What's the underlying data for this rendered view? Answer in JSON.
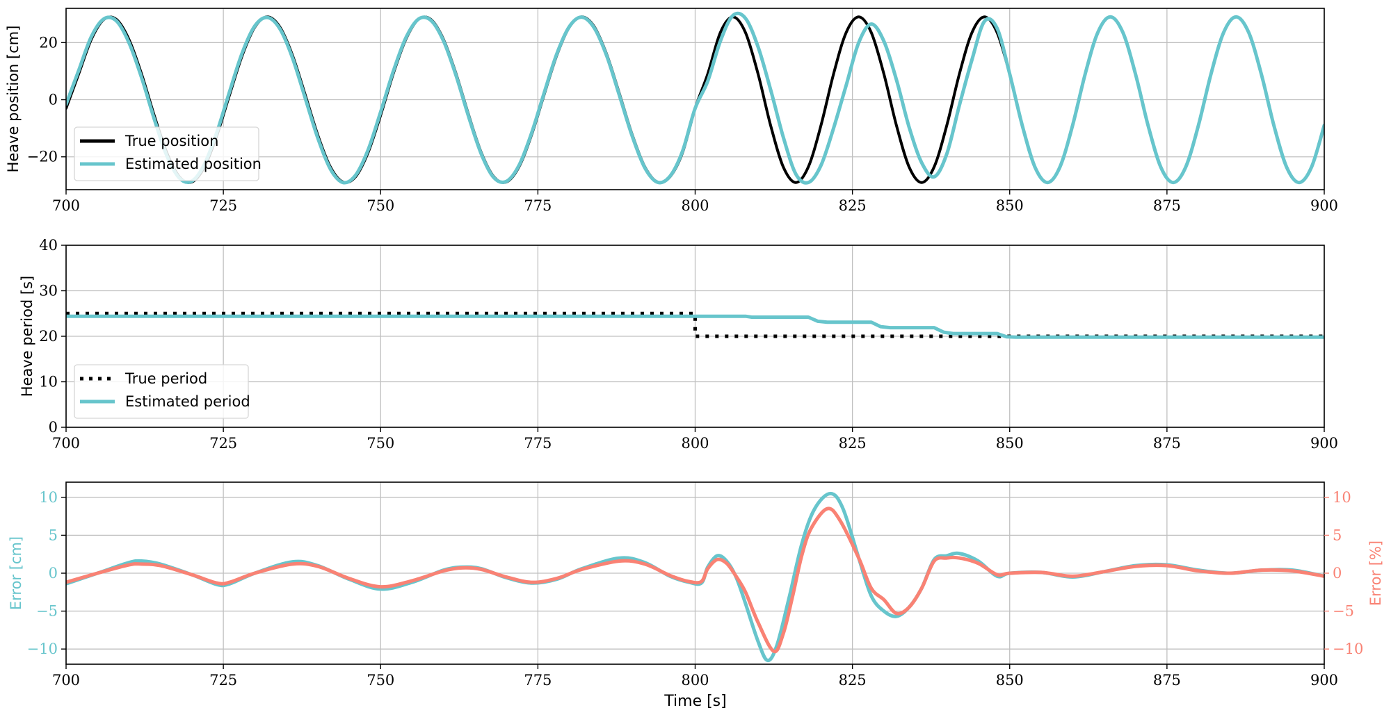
{
  "figure": {
    "xlabel": "Time [s]",
    "colors": {
      "true": "#000000",
      "estimated": "#67c5cc",
      "error_cm": "#67c5cc",
      "error_pct": "#f98274",
      "grid": "#c0c0c0",
      "axis": "#000000"
    }
  },
  "chart_data": [
    {
      "type": "line",
      "title": "",
      "xlabel": "",
      "ylabel": "Heave position [cm]",
      "xlim": [
        700,
        900
      ],
      "ylim": [
        -31.5,
        32
      ],
      "xticks": [
        700,
        725,
        750,
        775,
        800,
        825,
        850,
        875,
        900
      ],
      "yticks": [
        -20,
        0,
        20
      ],
      "grid": true,
      "legend": {
        "position": "lower left",
        "entries": [
          "True position",
          "Estimated position"
        ]
      },
      "x_step": 2,
      "x_start": 700,
      "series": [
        {
          "name": "True position",
          "style": "solid",
          "color": "#000000",
          "values": [
            -3.0,
            9.0,
            21.1,
            28.1,
            28.1,
            21.1,
            9.0,
            -5.4,
            -18.5,
            -27.0,
            -28.8,
            -23.5,
            -12.3,
            1.8,
            15.5,
            25.4,
            29.0,
            25.4,
            15.5,
            1.8,
            -12.3,
            -23.5,
            -28.8,
            -27.0,
            -18.5,
            -5.4,
            9.0,
            21.1,
            28.1,
            28.1,
            21.1,
            9.0,
            -5.4,
            -18.5,
            -27.0,
            -28.8,
            -23.5,
            -12.3,
            1.8,
            15.5,
            25.4,
            29.0,
            25.4,
            15.5,
            1.8,
            -12.3,
            -23.5,
            -28.8,
            -27.0,
            -18.5,
            -3.0,
            9.0,
            23.5,
            29.0,
            23.5,
            9.0,
            -9.0,
            -23.5,
            -29.0,
            -23.5,
            -9.0,
            9.0,
            23.5,
            29.0,
            23.5,
            9.0,
            -9.0,
            -23.5,
            -29.0,
            -23.5,
            -9.0,
            9.0,
            23.5,
            29.0,
            23.5,
            9.0,
            -9.0,
            -23.5,
            -29.0,
            -23.5,
            -9.0,
            9.0,
            23.5,
            29.0,
            23.5,
            9.0,
            -9.0,
            -23.5,
            -29.0,
            -23.5,
            -9.0,
            9.0,
            23.5,
            29.0,
            23.5,
            9.0,
            -9.0,
            -23.5,
            -29.0,
            -23.5,
            -9.0
          ]
        },
        {
          "name": "Estimated position",
          "style": "solid",
          "color": "#67c5cc",
          "values": [
            -1.6,
            10.2,
            22.0,
            28.3,
            27.6,
            20.0,
            7.8,
            -6.6,
            -19.5,
            -27.4,
            -28.5,
            -22.6,
            -11.2,
            2.9,
            16.4,
            25.8,
            28.8,
            24.8,
            14.6,
            0.7,
            -13.3,
            -24.2,
            -29.0,
            -26.5,
            -17.6,
            -4.3,
            9.8,
            21.6,
            28.2,
            27.8,
            20.6,
            8.4,
            -6.0,
            -19.0,
            -27.3,
            -28.6,
            -23.0,
            -11.7,
            2.4,
            16.0,
            25.6,
            28.9,
            25.0,
            15.0,
            1.2,
            -12.8,
            -23.8,
            -28.9,
            -26.8,
            -18.0,
            -3.0,
            6.5,
            20.5,
            29.5,
            28.5,
            18.5,
            3.5,
            -13.0,
            -26.0,
            -29.0,
            -23.0,
            -10.0,
            5.0,
            20.0,
            26.5,
            20.5,
            7.0,
            -9.5,
            -22.0,
            -27.0,
            -19.0,
            -2.0,
            14.0,
            27.5,
            25.0,
            9.0,
            -9.0,
            -23.5,
            -29.0,
            -23.5,
            -9.0,
            9.0,
            23.5,
            29.0,
            23.5,
            9.0,
            -9.0,
            -23.5,
            -29.0,
            -23.5,
            -9.0,
            9.0,
            23.5,
            29.0,
            23.5,
            9.0,
            -9.0,
            -23.5,
            -29.0,
            -23.5,
            -9.0
          ]
        }
      ]
    },
    {
      "type": "line",
      "title": "",
      "xlabel": "",
      "ylabel": "Heave period [s]",
      "xlim": [
        700,
        900
      ],
      "ylim": [
        0,
        40
      ],
      "xticks": [
        700,
        725,
        750,
        775,
        800,
        825,
        850,
        875,
        900
      ],
      "yticks": [
        0,
        10,
        20,
        30,
        40
      ],
      "grid": true,
      "legend": {
        "position": "lower left",
        "entries": [
          "True period",
          "Estimated period"
        ]
      },
      "series": [
        {
          "name": "True period",
          "style": "dotted",
          "color": "#000000",
          "points": [
            [
              700,
              25
            ],
            [
              800,
              25
            ],
            [
              800,
              20
            ],
            [
              900,
              20
            ]
          ]
        },
        {
          "name": "Estimated period",
          "style": "solid",
          "color": "#67c5cc",
          "points": [
            [
              700,
              24.4
            ],
            [
              808,
              24.4
            ],
            [
              809,
              24.2
            ],
            [
              818,
              24.2
            ],
            [
              819.5,
              23.3
            ],
            [
              821,
              23.1
            ],
            [
              828,
              23.1
            ],
            [
              829.5,
              22.1
            ],
            [
              831,
              21.9
            ],
            [
              838,
              21.9
            ],
            [
              839.5,
              20.9
            ],
            [
              841,
              20.6
            ],
            [
              848,
              20.6
            ],
            [
              849.5,
              19.9
            ],
            [
              851,
              19.8
            ],
            [
              900,
              19.8
            ]
          ]
        }
      ]
    },
    {
      "type": "line",
      "title": "",
      "xlabel": "Time [s]",
      "ylabel": "Error [cm]",
      "ylabel_right": "Error [%]",
      "xlim": [
        700,
        900
      ],
      "ylim": [
        -12,
        12
      ],
      "ylim_right": [
        -12,
        12
      ],
      "xticks": [
        700,
        725,
        750,
        775,
        800,
        825,
        850,
        875,
        900
      ],
      "yticks": [
        -10,
        -5,
        0,
        5,
        10
      ],
      "yticks_right": [
        -10,
        -5,
        0,
        5,
        10
      ],
      "grid": true,
      "legend": null,
      "series": [
        {
          "name": "Error [cm]",
          "axis": "left",
          "color": "#67c5cc",
          "points": [
            [
              700,
              -1.4
            ],
            [
              705,
              0.0
            ],
            [
              710,
              1.4
            ],
            [
              712,
              1.6
            ],
            [
              715,
              1.2
            ],
            [
              720,
              -0.2
            ],
            [
              724,
              -1.5
            ],
            [
              726,
              -1.4
            ],
            [
              730,
              0.0
            ],
            [
              736,
              1.5
            ],
            [
              740,
              1.0
            ],
            [
              745,
              -0.8
            ],
            [
              750,
              -2.1
            ],
            [
              755,
              -1.2
            ],
            [
              760,
              0.4
            ],
            [
              763,
              0.8
            ],
            [
              766,
              0.6
            ],
            [
              770,
              -0.6
            ],
            [
              774,
              -1.3
            ],
            [
              778,
              -0.8
            ],
            [
              782,
              0.6
            ],
            [
              788,
              2.0
            ],
            [
              792,
              1.4
            ],
            [
              796,
              -0.4
            ],
            [
              799,
              -1.2
            ],
            [
              801,
              -1.3
            ],
            [
              802,
              0.8
            ],
            [
              803.5,
              2.3
            ],
            [
              805,
              1.6
            ],
            [
              806.5,
              -0.5
            ],
            [
              808,
              -4.0
            ],
            [
              810,
              -9.0
            ],
            [
              811.5,
              -11.5
            ],
            [
              813,
              -9.5
            ],
            [
              815,
              -3.0
            ],
            [
              817,
              4.0
            ],
            [
              819,
              8.5
            ],
            [
              821.5,
              10.5
            ],
            [
              823.5,
              8.5
            ],
            [
              826,
              2.0
            ],
            [
              828,
              -3.0
            ],
            [
              830,
              -5.0
            ],
            [
              832,
              -5.7
            ],
            [
              834,
              -4.5
            ],
            [
              836,
              -2.0
            ],
            [
              838,
              1.8
            ],
            [
              840,
              2.3
            ],
            [
              842,
              2.6
            ],
            [
              845,
              1.6
            ],
            [
              848,
              -0.4
            ],
            [
              850,
              0.0
            ],
            [
              855,
              0.1
            ],
            [
              860,
              -0.5
            ],
            [
              865,
              0.2
            ],
            [
              870,
              1.0
            ],
            [
              875,
              1.1
            ],
            [
              880,
              0.4
            ],
            [
              885,
              0.0
            ],
            [
              890,
              0.4
            ],
            [
              895,
              0.4
            ],
            [
              900,
              -0.4
            ]
          ]
        },
        {
          "name": "Error [%]",
          "axis": "right",
          "color": "#f98274",
          "points": [
            [
              700,
              -1.2
            ],
            [
              705,
              0.0
            ],
            [
              710,
              1.1
            ],
            [
              712,
              1.2
            ],
            [
              715,
              1.0
            ],
            [
              720,
              -0.2
            ],
            [
              724,
              -1.3
            ],
            [
              726,
              -1.2
            ],
            [
              730,
              0.0
            ],
            [
              736,
              1.2
            ],
            [
              740,
              0.9
            ],
            [
              745,
              -0.7
            ],
            [
              750,
              -1.8
            ],
            [
              755,
              -1.0
            ],
            [
              760,
              0.3
            ],
            [
              763,
              0.7
            ],
            [
              766,
              0.5
            ],
            [
              770,
              -0.5
            ],
            [
              774,
              -1.2
            ],
            [
              778,
              -0.7
            ],
            [
              782,
              0.5
            ],
            [
              788,
              1.6
            ],
            [
              792,
              1.2
            ],
            [
              796,
              -0.3
            ],
            [
              799,
              -1.1
            ],
            [
              801,
              -1.1
            ],
            [
              802,
              0.6
            ],
            [
              803.5,
              1.8
            ],
            [
              805,
              1.3
            ],
            [
              806.5,
              -0.4
            ],
            [
              808,
              -2.5
            ],
            [
              810,
              -6.5
            ],
            [
              812.5,
              -10.3
            ],
            [
              814,
              -8.0
            ],
            [
              815.5,
              -3.0
            ],
            [
              817,
              2.5
            ],
            [
              818.5,
              6.0
            ],
            [
              821,
              8.5
            ],
            [
              823,
              7.0
            ],
            [
              826,
              2.0
            ],
            [
              828,
              -2.0
            ],
            [
              830,
              -3.5
            ],
            [
              832,
              -5.3
            ],
            [
              834,
              -4.5
            ],
            [
              836,
              -2.0
            ],
            [
              838,
              1.6
            ],
            [
              840,
              2.0
            ],
            [
              842,
              2.0
            ],
            [
              845,
              1.3
            ],
            [
              848,
              -0.2
            ],
            [
              850,
              0.0
            ],
            [
              855,
              0.1
            ],
            [
              860,
              -0.4
            ],
            [
              865,
              0.2
            ],
            [
              870,
              0.9
            ],
            [
              875,
              1.0
            ],
            [
              880,
              0.3
            ],
            [
              885,
              0.0
            ],
            [
              890,
              0.4
            ],
            [
              895,
              0.3
            ],
            [
              900,
              -0.4
            ]
          ]
        }
      ]
    }
  ]
}
